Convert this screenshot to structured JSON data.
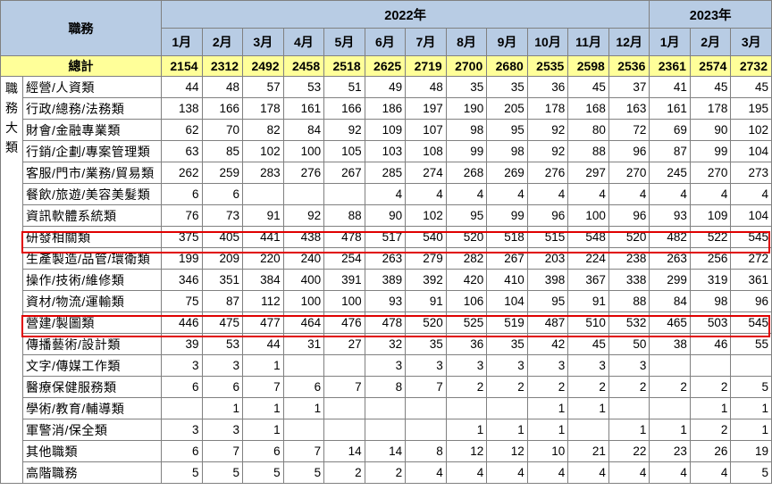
{
  "header": {
    "row_label": "職務",
    "years": [
      {
        "label": "2022年",
        "span": 12
      },
      {
        "label": "2023年",
        "span": 3
      }
    ],
    "months": [
      "1月",
      "2月",
      "3月",
      "4月",
      "5月",
      "6月",
      "7月",
      "8月",
      "9月",
      "10月",
      "11月",
      "12月",
      "1月",
      "2月",
      "3月"
    ]
  },
  "total": {
    "label": "總計",
    "values": [
      "2154",
      "2312",
      "2492",
      "2458",
      "2518",
      "2625",
      "2719",
      "2700",
      "2680",
      "2535",
      "2598",
      "2536",
      "2361",
      "2574",
      "2732"
    ]
  },
  "group_label": "職務大類",
  "rows": [
    {
      "label": "經營/人資類",
      "values": [
        "44",
        "48",
        "57",
        "53",
        "51",
        "49",
        "48",
        "35",
        "35",
        "36",
        "45",
        "37",
        "41",
        "45",
        "45"
      ]
    },
    {
      "label": "行政/總務/法務類",
      "values": [
        "138",
        "166",
        "178",
        "161",
        "166",
        "186",
        "197",
        "190",
        "205",
        "178",
        "168",
        "163",
        "161",
        "178",
        "195"
      ]
    },
    {
      "label": "財會/金融專業類",
      "values": [
        "62",
        "70",
        "82",
        "84",
        "92",
        "109",
        "107",
        "98",
        "95",
        "92",
        "80",
        "72",
        "69",
        "90",
        "102"
      ]
    },
    {
      "label": "行銷/企劃/專案管理類",
      "values": [
        "63",
        "85",
        "102",
        "100",
        "105",
        "103",
        "108",
        "99",
        "98",
        "92",
        "88",
        "96",
        "87",
        "99",
        "104"
      ]
    },
    {
      "label": "客服/門市/業務/貿易類",
      "values": [
        "262",
        "259",
        "283",
        "276",
        "267",
        "285",
        "274",
        "268",
        "269",
        "276",
        "297",
        "270",
        "245",
        "270",
        "273"
      ]
    },
    {
      "label": "餐飲/旅遊/美容美髮類",
      "values": [
        "6",
        "6",
        "",
        "",
        "",
        "4",
        "4",
        "4",
        "4",
        "4",
        "4",
        "4",
        "4",
        "4",
        "4"
      ]
    },
    {
      "label": "資訊軟體系統類",
      "values": [
        "76",
        "73",
        "91",
        "92",
        "88",
        "90",
        "102",
        "95",
        "99",
        "96",
        "100",
        "96",
        "93",
        "109",
        "104"
      ]
    },
    {
      "label": "研發相關類",
      "values": [
        "375",
        "405",
        "441",
        "438",
        "478",
        "517",
        "540",
        "520",
        "518",
        "515",
        "548",
        "520",
        "482",
        "522",
        "545"
      ]
    },
    {
      "label": "生產製造/品管/環衛類",
      "values": [
        "199",
        "209",
        "220",
        "240",
        "254",
        "263",
        "279",
        "282",
        "267",
        "203",
        "224",
        "238",
        "263",
        "256",
        "272"
      ]
    },
    {
      "label": "操作/技術/維修類",
      "values": [
        "346",
        "351",
        "384",
        "400",
        "391",
        "389",
        "392",
        "420",
        "410",
        "398",
        "367",
        "338",
        "299",
        "319",
        "361"
      ]
    },
    {
      "label": "資材/物流/運輸類",
      "values": [
        "75",
        "87",
        "112",
        "100",
        "100",
        "93",
        "91",
        "106",
        "104",
        "95",
        "91",
        "88",
        "84",
        "98",
        "96"
      ]
    },
    {
      "label": "營建/製圖類",
      "values": [
        "446",
        "475",
        "477",
        "464",
        "476",
        "478",
        "520",
        "525",
        "519",
        "487",
        "510",
        "532",
        "465",
        "503",
        "545"
      ]
    },
    {
      "label": "傳播藝術/設計類",
      "values": [
        "39",
        "53",
        "44",
        "31",
        "27",
        "32",
        "35",
        "36",
        "35",
        "42",
        "45",
        "50",
        "38",
        "46",
        "55"
      ]
    },
    {
      "label": "文字/傳媒工作類",
      "values": [
        "3",
        "3",
        "1",
        "",
        "",
        "3",
        "3",
        "3",
        "3",
        "3",
        "3",
        "3",
        "",
        "",
        ""
      ]
    },
    {
      "label": "醫療保健服務類",
      "values": [
        "6",
        "6",
        "7",
        "6",
        "7",
        "8",
        "7",
        "2",
        "2",
        "2",
        "2",
        "2",
        "2",
        "2",
        "5"
      ]
    },
    {
      "label": "學術/教育/輔導類",
      "values": [
        "",
        "1",
        "1",
        "1",
        "",
        "",
        "",
        "",
        "",
        "1",
        "1",
        "",
        "",
        "1",
        "1"
      ]
    },
    {
      "label": "軍警消/保全類",
      "values": [
        "3",
        "3",
        "1",
        "",
        "",
        "",
        "",
        "1",
        "1",
        "1",
        "",
        "1",
        "1",
        "2",
        "1"
      ]
    },
    {
      "label": "其他職類",
      "values": [
        "6",
        "7",
        "6",
        "7",
        "14",
        "14",
        "8",
        "12",
        "12",
        "10",
        "21",
        "22",
        "23",
        "26",
        "19"
      ]
    },
    {
      "label": "高階職務",
      "values": [
        "5",
        "5",
        "5",
        "5",
        "2",
        "2",
        "4",
        "4",
        "4",
        "4",
        "4",
        "4",
        "4",
        "4",
        "5"
      ]
    }
  ],
  "highlight_color": "#e00000"
}
